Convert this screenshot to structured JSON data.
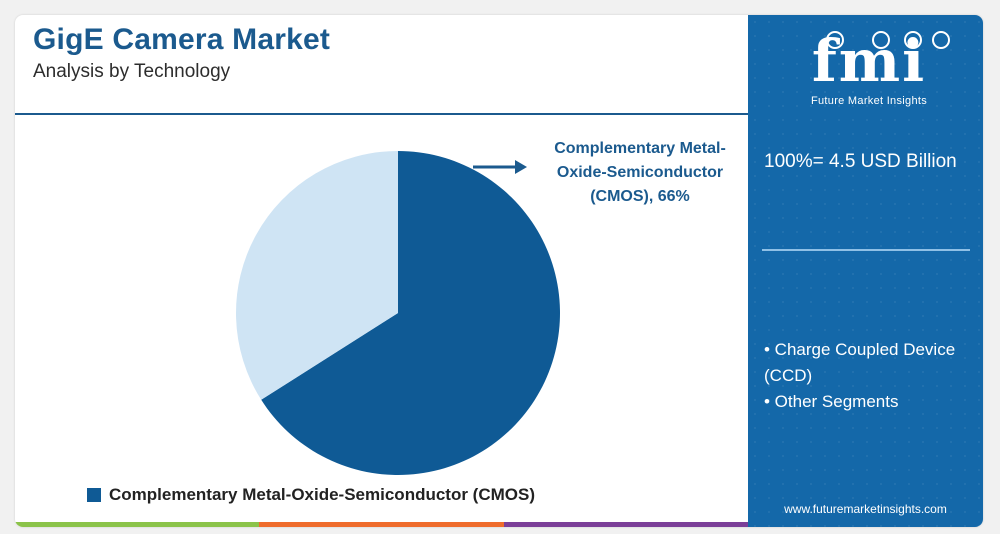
{
  "header": {
    "title": "GigE Camera Market",
    "subtitle": "Analysis by Technology"
  },
  "chart_data": {
    "type": "pie",
    "slices": [
      {
        "name": "Complementary Metal-Oxide-Semiconductor (CMOS)",
        "value": 66,
        "color": "#0f5a95"
      },
      {
        "name": "Other",
        "value": 34,
        "color": "#cfe4f4"
      }
    ],
    "callout": "Complementary Metal-Oxide-Semiconductor (CMOS), 66%",
    "legend": [
      {
        "label": "Complementary Metal-Oxide-Semiconductor (CMOS)",
        "color": "#0f5a95"
      }
    ],
    "legend_position": "bottom"
  },
  "sidebar": {
    "logo_text": "fmi",
    "logo_subtitle": "Future Market Insights",
    "total": "100%= 4.5 USD Billion",
    "segments": [
      "• Charge Coupled Device (CCD)",
      "• Other Segments"
    ],
    "website": "www.futuremarketinsights.com",
    "background_color": "#1468a9"
  },
  "bottom_bar_colors": [
    "#8bc34a",
    "#ef6c2c",
    "#7b3f98"
  ]
}
